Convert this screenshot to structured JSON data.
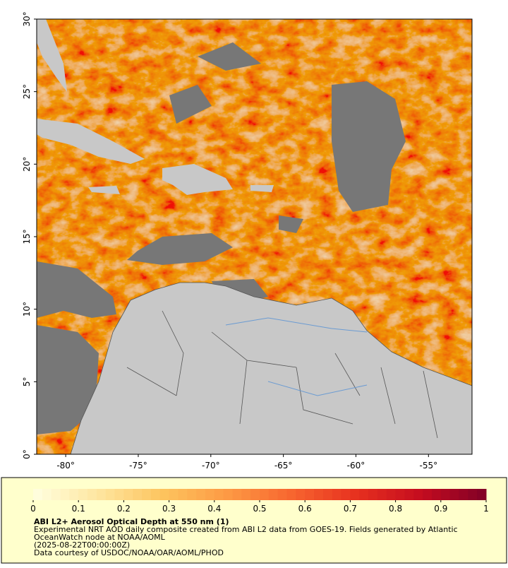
{
  "map": {
    "lon_range": [
      -82,
      -52
    ],
    "lat_range": [
      0,
      30
    ],
    "lon_ticks": [
      {
        "value": -80,
        "label": "-80°"
      },
      {
        "value": -75,
        "label": "-75°"
      },
      {
        "value": -70,
        "label": "-70°"
      },
      {
        "value": -65,
        "label": "-65°"
      },
      {
        "value": -60,
        "label": "-60°"
      },
      {
        "value": -55,
        "label": "-55°"
      }
    ],
    "lat_ticks": [
      {
        "value": 0,
        "label": "0°"
      },
      {
        "value": 5,
        "label": "5°"
      },
      {
        "value": 10,
        "label": "10°"
      },
      {
        "value": 15,
        "label": "15°"
      },
      {
        "value": 20,
        "label": "20°"
      },
      {
        "value": 25,
        "label": "25°"
      },
      {
        "value": 30,
        "label": "30°"
      }
    ]
  },
  "colorbar": {
    "range": [
      0,
      1
    ],
    "ticks": [
      0,
      0.1,
      0.2,
      0.3,
      0.4,
      0.5,
      0.6,
      0.7,
      0.8,
      0.9,
      1
    ],
    "colors": [
      "#ffffe0",
      "#fee6a0",
      "#fdc45e",
      "#fd9a44",
      "#f7652f",
      "#e7301f",
      "#c40c1f",
      "#800026"
    ],
    "title": "ABI L2+ Aerosol Optical Depth at 550 nm (1)",
    "lines": [
      "Experimental NRT AOD daily composite created from ABI L2 data from GOES-19. Fields generated by Atlantic",
      "OceanWatch node at NOAA/AOML",
      "(2025-08-22T00:00:00Z)",
      "Data courtesy of USDOC/NOAA/OAR/AOML/PHOD"
    ]
  }
}
